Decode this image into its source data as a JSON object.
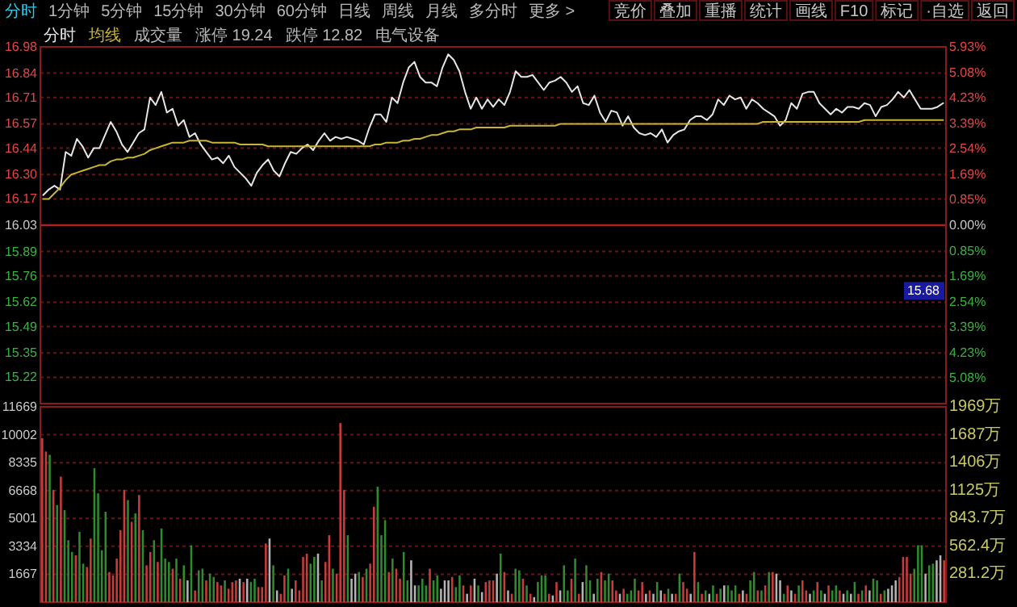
{
  "chart_data": [
    {
      "type": "other",
      "annotations": [
        "分时",
        "1分钟",
        "5分钟",
        "15分钟",
        "30分钟",
        "60分钟",
        "日线",
        "周线",
        "月线",
        "多分时",
        "更多 >"
      ]
    },
    {
      "type": "other",
      "annotations": [
        "竞价",
        "叠加",
        "重播",
        "统计",
        "画线",
        "F10",
        "标记",
        "·自选",
        "返回"
      ]
    },
    {
      "type": "line",
      "grid": "y",
      "categories": [
        null,
        null,
        null,
        null,
        null,
        null,
        null,
        null,
        null,
        null,
        null,
        null,
        null,
        null,
        null,
        null,
        null,
        null,
        null,
        null,
        null,
        null,
        null,
        null,
        null,
        null,
        null,
        null,
        null,
        null,
        null,
        null,
        null,
        null,
        null,
        null,
        null,
        null,
        null,
        null,
        null,
        null,
        null,
        null,
        null,
        null,
        null,
        null,
        null,
        null,
        null,
        null,
        null,
        null,
        null,
        null,
        null,
        null,
        null,
        null,
        null,
        null,
        null,
        null,
        null,
        null,
        null,
        null,
        null,
        null,
        null,
        null,
        null,
        null,
        null,
        null,
        null,
        null,
        null,
        null,
        null,
        null,
        null,
        null,
        null,
        null,
        null,
        null,
        null,
        null,
        null,
        null,
        null,
        null,
        null,
        null,
        null,
        null,
        null,
        null,
        null,
        null,
        null,
        null,
        null,
        null,
        null,
        null,
        null,
        null,
        null,
        null,
        null,
        null,
        null,
        null,
        null,
        null,
        null,
        null,
        null,
        null,
        null,
        null,
        null,
        null,
        null,
        null,
        null,
        null,
        null,
        null,
        null,
        null,
        null,
        null,
        null,
        null,
        null,
        null,
        null,
        null,
        null,
        null,
        null,
        null,
        null,
        null,
        null,
        null,
        null,
        null,
        null,
        null,
        null,
        null,
        null,
        null,
        null,
        null,
        null
      ],
      "ylim": [
        15.08,
        16.98
      ],
      "yticks": [
        16.98,
        16.84,
        16.71,
        16.57,
        16.44,
        {
          "value": 16.3,
          "label": "16.30"
        },
        16.17,
        16.03,
        15.89,
        15.76,
        15.62,
        15.49,
        15.35,
        15.22
      ],
      "y2lim": [
        -5.93,
        5.93
      ],
      "y2ticks": [
        {
          "value": 5.93,
          "label": "5.93%"
        },
        {
          "value": 5.08,
          "label": "5.08%"
        },
        {
          "value": 4.23,
          "label": "4.23%"
        },
        {
          "value": 3.39,
          "label": "3.39%"
        },
        {
          "value": 2.54,
          "label": "2.54%"
        },
        {
          "value": 1.69,
          "label": "1.69%"
        },
        {
          "value": 0.85,
          "label": "0.85%"
        },
        {
          "value": 0,
          "label": "0.00%"
        },
        {
          "value": -0.85,
          "label": "0.85%"
        },
        {
          "value": -1.69,
          "label": "1.69%"
        },
        {
          "value": -2.54,
          "label": "2.54%"
        },
        {
          "value": -3.39,
          "label": "3.39%"
        },
        {
          "value": -4.23,
          "label": "4.23%"
        },
        {
          "value": -5.08,
          "label": "5.08%"
        }
      ],
      "ref_lines": [
        {
          "axis": "y",
          "value": 16.03,
          "color": "#b02020"
        }
      ],
      "annotations": [
        "成交量",
        "涨停 19.24",
        "跌停 12.82",
        "电气设备",
        {
          "text": "15.68",
          "y": 15.68
        }
      ],
      "series": [
        {
          "name": "分时",
          "color": "#e6e6e6",
          "values": [
            16.19,
            16.22,
            16.24,
            16.22,
            16.42,
            16.4,
            16.49,
            16.45,
            16.39,
            16.44,
            16.44,
            16.51,
            16.58,
            16.53,
            16.46,
            16.42,
            16.47,
            16.52,
            16.54,
            16.71,
            16.67,
            16.74,
            16.63,
            16.65,
            16.56,
            16.59,
            16.5,
            16.52,
            16.46,
            16.42,
            16.38,
            16.39,
            16.36,
            16.4,
            16.34,
            16.31,
            16.28,
            16.24,
            16.31,
            16.35,
            16.38,
            16.32,
            16.29,
            16.36,
            16.42,
            16.41,
            16.44,
            16.46,
            16.43,
            16.48,
            16.52,
            16.48,
            16.5,
            16.49,
            16.5,
            16.49,
            16.48,
            16.46,
            16.55,
            16.62,
            16.62,
            16.58,
            16.71,
            16.68,
            16.79,
            16.87,
            16.9,
            16.82,
            16.79,
            16.79,
            16.77,
            16.87,
            16.94,
            16.91,
            16.85,
            16.74,
            16.65,
            16.71,
            16.65,
            16.7,
            16.66,
            16.7,
            16.67,
            16.74,
            16.85,
            16.82,
            16.82,
            16.83,
            16.79,
            16.75,
            16.79,
            16.8,
            16.82,
            16.79,
            16.74,
            16.77,
            16.68,
            16.67,
            16.72,
            16.63,
            16.58,
            16.64,
            16.63,
            16.56,
            16.61,
            16.55,
            16.52,
            16.51,
            16.52,
            16.5,
            16.54,
            16.47,
            16.51,
            16.53,
            16.54,
            16.59,
            16.61,
            16.61,
            16.59,
            16.62,
            16.7,
            16.67,
            16.72,
            16.7,
            16.71,
            16.65,
            16.7,
            16.68,
            16.65,
            16.63,
            16.61,
            16.56,
            16.59,
            16.68,
            16.65,
            16.73,
            16.74,
            16.74,
            16.68,
            16.65,
            16.62,
            16.65,
            16.63,
            16.66,
            16.66,
            16.65,
            16.68,
            16.67,
            16.61,
            16.66,
            16.67,
            16.7,
            16.74,
            16.71,
            16.75,
            16.7,
            16.65,
            16.65,
            16.65,
            16.66,
            16.68
          ]
        },
        {
          "name": "均线",
          "color": "#c8b432",
          "values": [
            16.17,
            16.17,
            16.2,
            16.23,
            16.27,
            16.3,
            16.31,
            16.32,
            16.33,
            16.34,
            16.35,
            16.35,
            16.37,
            16.38,
            16.38,
            16.39,
            16.39,
            16.4,
            16.41,
            16.43,
            16.44,
            16.45,
            16.46,
            16.47,
            16.47,
            16.47,
            16.48,
            16.48,
            16.48,
            16.48,
            16.47,
            16.47,
            16.47,
            16.47,
            16.47,
            16.46,
            16.46,
            16.46,
            16.46,
            16.46,
            16.45,
            16.45,
            16.45,
            16.45,
            16.45,
            16.45,
            16.45,
            16.45,
            16.45,
            16.45,
            16.45,
            16.45,
            16.45,
            16.45,
            16.45,
            16.45,
            16.45,
            16.45,
            16.45,
            16.46,
            16.46,
            16.47,
            16.47,
            16.47,
            16.48,
            16.48,
            16.49,
            16.49,
            16.5,
            16.51,
            16.51,
            16.52,
            16.53,
            16.53,
            16.54,
            16.54,
            16.54,
            16.55,
            16.55,
            16.55,
            16.55,
            16.55,
            16.55,
            16.56,
            16.56,
            16.56,
            16.56,
            16.56,
            16.56,
            16.56,
            16.56,
            16.56,
            16.57,
            16.57,
            16.57,
            16.57,
            16.57,
            16.57,
            16.57,
            16.57,
            16.57,
            16.57,
            16.57,
            16.57,
            16.57,
            16.57,
            16.57,
            16.57,
            16.57,
            16.57,
            16.57,
            16.57,
            16.57,
            16.57,
            16.57,
            16.57,
            16.57,
            16.57,
            16.57,
            16.57,
            16.57,
            16.57,
            16.57,
            16.57,
            16.57,
            16.57,
            16.57,
            16.57,
            16.58,
            16.58,
            16.58,
            16.58,
            16.58,
            16.58,
            16.58,
            16.58,
            16.58,
            16.58,
            16.58,
            16.58,
            16.58,
            16.58,
            16.58,
            16.58,
            16.58,
            16.58,
            16.59,
            16.59,
            16.59,
            16.59,
            16.59,
            16.59,
            16.59,
            16.59,
            16.59,
            16.59,
            16.59,
            16.59,
            16.59,
            16.59,
            16.59
          ]
        }
      ]
    },
    {
      "type": "bar",
      "grid": "y",
      "ylim": [
        0,
        11669
      ],
      "yticks": [
        1667,
        3334,
        5001,
        6668,
        8335,
        10002,
        11669
      ],
      "y2lim": [
        0,
        1969
      ],
      "y2ticks": [
        {
          "value": 281.2,
          "label": "281.2万"
        },
        {
          "value": 562.4,
          "label": "562.4万"
        },
        {
          "value": 843.7,
          "label": "843.7万"
        },
        {
          "value": 1125,
          "label": "1125万"
        },
        {
          "value": 1406,
          "label": "1406万"
        },
        {
          "value": 1687,
          "label": "1687万"
        },
        {
          "value": 1969,
          "label": "1969万"
        }
      ],
      "categories": [
        null,
        null,
        null,
        null,
        null,
        null,
        null,
        null,
        null,
        null,
        null,
        null,
        null,
        null,
        null,
        null,
        null,
        null,
        null,
        null,
        null,
        null,
        null,
        null,
        null,
        null,
        null,
        null,
        null,
        null,
        null,
        null,
        null,
        null,
        null,
        null,
        null,
        null,
        null,
        null,
        null,
        null,
        null,
        null,
        null,
        null,
        null,
        null,
        null,
        null,
        null,
        null,
        null,
        null,
        null,
        null,
        null,
        null,
        null,
        null,
        null,
        null,
        null,
        null,
        null,
        null,
        null,
        null,
        null,
        null,
        null,
        null,
        null,
        null,
        null,
        null,
        null,
        null,
        null,
        null,
        null,
        null,
        null,
        null,
        null,
        null,
        null,
        null,
        null,
        null,
        null,
        null,
        null,
        null,
        null,
        null,
        null,
        null,
        null,
        null,
        null,
        null,
        null,
        null,
        null,
        null,
        null,
        null,
        null,
        null,
        null,
        null,
        null,
        null,
        null,
        null,
        null,
        null,
        null,
        null,
        null,
        null,
        null,
        null,
        null,
        null,
        null,
        null,
        null,
        null,
        null,
        null,
        null,
        null,
        null,
        null,
        null,
        null,
        null,
        null,
        null,
        null,
        null,
        null,
        null,
        null,
        null,
        null,
        null,
        null,
        null,
        null,
        null,
        null,
        null,
        null,
        null,
        null,
        null,
        null,
        null,
        null,
        null,
        null,
        null,
        null,
        null,
        null,
        null,
        null,
        null,
        null,
        null,
        null,
        null,
        null,
        null,
        null,
        null,
        null,
        null,
        null,
        null,
        null,
        null,
        null,
        null,
        null,
        null,
        null,
        null,
        null,
        null,
        null,
        null,
        null,
        null,
        null,
        null,
        null,
        null,
        null,
        null,
        null,
        null,
        null,
        null,
        null,
        null,
        null,
        null,
        null,
        null,
        null,
        null,
        null,
        null,
        null,
        null,
        null,
        null,
        null,
        null,
        null,
        null,
        null,
        null,
        null,
        null,
        null,
        null,
        null,
        null,
        null,
        null,
        null,
        null,
        null,
        null,
        null,
        null,
        null,
        null
      ],
      "values": [
        9800,
        9000,
        8800,
        6700,
        5800,
        7500,
        5500,
        3700,
        3000,
        2800,
        4200,
        2300,
        2100,
        3800,
        8000,
        6500,
        3100,
        5400,
        1800,
        1600,
        2600,
        4300,
        6700,
        6100,
        4800,
        5300,
        6400,
        4300,
        2200,
        3000,
        3700,
        2400,
        4400,
        2600,
        2400,
        2000,
        2600,
        1400,
        2200,
        1300,
        3400,
        700,
        1900,
        2000,
        1300,
        1700,
        1500,
        1200,
        1000,
        1300,
        800,
        1200,
        1300,
        1400,
        1200,
        1400,
        1200,
        1400,
        900,
        900,
        3500,
        3800,
        2200,
        700,
        500,
        1600,
        2000,
        800,
        1300,
        700,
        2700,
        2900,
        2300,
        2700,
        2900,
        1300,
        2400,
        4000,
        2000,
        1700,
        10700,
        6700,
        4000,
        1400,
        1700,
        1800,
        1500,
        2000,
        2300,
        5700,
        6900,
        4000,
        4900,
        1800,
        2600,
        2000,
        1400,
        3000,
        1300,
        2500,
        1000,
        1000,
        1400,
        1000,
        2000,
        1300,
        1600,
        800,
        1300,
        1300,
        1500,
        900,
        1600,
        1000,
        500,
        1000,
        1400,
        1000,
        600,
        1200,
        1300,
        1300,
        1700,
        2900,
        1800,
        700,
        500,
        2000,
        1900,
        1400,
        1000,
        500,
        300,
        1200,
        1600,
        1600,
        500,
        400,
        1200,
        700,
        2200,
        700,
        1400,
        2600,
        500,
        1200,
        2200,
        1300,
        500,
        1400,
        1800,
        1300,
        1700,
        1300,
        700,
        500,
        800,
        500,
        700,
        1400,
        700,
        1200,
        500,
        700,
        500,
        1200,
        700,
        500,
        800,
        500,
        500,
        1700,
        1200,
        800,
        500,
        3000,
        1200,
        500,
        700,
        500,
        1000,
        500,
        800,
        1000,
        1000,
        700,
        1000,
        500,
        700,
        500,
        1300,
        1800,
        700,
        700,
        1000,
        1800,
        1800,
        1700,
        1300,
        500,
        1000,
        700,
        500,
        1000,
        1300,
        700,
        500,
        700,
        1200,
        700,
        500,
        1000,
        700,
        1000,
        700,
        500,
        700,
        500,
        1200,
        500,
        700,
        1000,
        700,
        1400,
        1300,
        500,
        700,
        800,
        1000,
        1300,
        1500,
        2700,
        2700,
        1700,
        2000,
        3400,
        3400,
        1700,
        2200,
        2300,
        2500,
        2800,
        2500
      ],
      "colors": [
        "#c83c3c",
        "#c83c3c",
        "#2e8b2e",
        "#c83c3c",
        "#2e8b2e",
        "#c83c3c",
        "#2e8b2e",
        "#2e8b2e",
        "#2e8b2e",
        "#c83c3c",
        "#2e8b2e",
        "#2e8b2e",
        "#c83c3c",
        "#c83c3c",
        "#2e8b2e",
        "#2e8b2e",
        "#2e8b2e",
        "#2e8b2e",
        "#c83c3c",
        "#c83c3c",
        "#c83c3c",
        "#c83c3c",
        "#c83c3c",
        "#2e8b2e",
        "#c83c3c",
        "#2e8b2e",
        "#c83c3c",
        "#2e8b2e",
        "#c83c3c",
        "#c83c3c",
        "#2e8b2e",
        "#c83c3c",
        "#2e8b2e",
        "#2e8b2e",
        "#2e8b2e",
        "#c83c3c",
        "#2e8b2e",
        "#c83c3c",
        "#2e8b2e",
        "#b4b4b4",
        "#2e8b2e",
        "#c83c3c",
        "#2e8b2e",
        "#2e8b2e",
        "#c83c3c",
        "#2e8b2e",
        "#2e8b2e",
        "#c83c3c",
        "#c83c3c",
        "#2e8b2e",
        "#c83c3c",
        "#c83c3c",
        "#c83c3c",
        "#b4b4b4",
        "#c83c3c",
        "#b4b4b4",
        "#2e8b2e",
        "#2e8b2e",
        "#c83c3c",
        "#c83c3c",
        "#c83c3c",
        "#b4b4b4",
        "#2e8b2e",
        "#b4b4b4",
        "#c83c3c",
        "#c83c3c",
        "#2e8b2e",
        "#b4b4b4",
        "#c83c3c",
        "#c83c3c",
        "#c83c3c",
        "#c83c3c",
        "#2e8b2e",
        "#2e8b2e",
        "#b4b4b4",
        "#2e8b2e",
        "#c83c3c",
        "#c83c3c",
        "#2e8b2e",
        "#c83c3c",
        "#c83c3c",
        "#c83c3c",
        "#2e8b2e",
        "#b4b4b4",
        "#b4b4b4",
        "#2e8b2e",
        "#c83c3c",
        "#2e8b2e",
        "#c83c3c",
        "#c83c3c",
        "#2e8b2e",
        "#2e8b2e",
        "#2e8b2e",
        "#c83c3c",
        "#2e8b2e",
        "#c83c3c",
        "#c83c3c",
        "#2e8b2e",
        "#2e8b2e",
        "#b4b4b4",
        "#b4b4b4",
        "#2e8b2e",
        "#2e8b2e",
        "#2e8b2e",
        "#c83c3c",
        "#2e8b2e",
        "#2e8b2e",
        "#b4b4b4",
        "#b4b4b4",
        "#b4b4b4",
        "#c83c3c",
        "#2e8b2e",
        "#2e8b2e",
        "#c83c3c",
        "#b4b4b4",
        "#c83c3c",
        "#b4b4b4",
        "#2e8b2e",
        "#b4b4b4",
        "#c83c3c",
        "#c83c3c",
        "#c83c3c",
        "#b4b4b4",
        "#2e8b2e",
        "#c83c3c",
        "#b4b4b4",
        "#c83c3c",
        "#2e8b2e",
        "#2e8b2e",
        "#c83c3c",
        "#2e8b2e",
        "#c83c3c",
        "#b4b4b4",
        "#2e8b2e",
        "#2e8b2e",
        "#2e8b2e",
        "#c83c3c",
        "#b4b4b4",
        "#c83c3c",
        "#b4b4b4",
        "#2e8b2e",
        "#2e8b2e",
        "#c83c3c",
        "#2e8b2e",
        "#c83c3c",
        "#b4b4b4",
        "#2e8b2e",
        "#2e8b2e",
        "#b4b4b4",
        "#2e8b2e",
        "#c83c3c",
        "#2e8b2e",
        "#2e8b2e",
        "#c83c3c",
        "#c83c3c",
        "#b4b4b4",
        "#c83c3c",
        "#2e8b2e",
        "#2e8b2e",
        "#2e8b2e",
        "#c83c3c",
        "#c83c3c",
        "#b4b4b4",
        "#c83c3c",
        "#b4b4b4",
        "#2e8b2e",
        "#b4b4b4",
        "#c83c3c",
        "#2e8b2e",
        "#b4b4b4",
        "#c83c3c",
        "#2e8b2e",
        "#c83c3c",
        "#c83c3c",
        "#b4b4b4",
        "#c83c3c",
        "#2e8b2e",
        "#c83c3c",
        "#2e8b2e",
        "#b4b4b4",
        "#2e8b2e",
        "#c83c3c",
        "#2e8b2e",
        "#b4b4b4",
        "#2e8b2e",
        "#2e8b2e",
        "#2e8b2e",
        "#c83c3c",
        "#b4b4b4",
        "#c83c3c",
        "#2e8b2e",
        "#2e8b2e",
        "#c83c3c",
        "#2e8b2e",
        "#c83c3c",
        "#2e8b2e",
        "#c83c3c",
        "#b4b4b4",
        "#b4b4b4",
        "#2e8b2e",
        "#c83c3c",
        "#b4b4b4",
        "#c83c3c",
        "#2e8b2e",
        "#c83c3c",
        "#c83c3c",
        "#b4b4b4",
        "#2e8b2e",
        "#c83c3c",
        "#2e8b2e",
        "#b4b4b4",
        "#c83c3c",
        "#2e8b2e",
        "#2e8b2e",
        "#c83c3c",
        "#b4b4b4",
        "#2e8b2e",
        "#b4b4b4",
        "#2e8b2e",
        "#c83c3c",
        "#2e8b2e",
        "#c83c3c",
        "#b4b4b4",
        "#2e8b2e",
        "#2e8b2e",
        "#c83c3c",
        "#2e8b2e",
        "#b4b4b4",
        "#b4b4b4",
        "#b4b4b4",
        "#c83c3c",
        "#c83c3c",
        "#c83c3c",
        "#c83c3c",
        "#2e8b2e",
        "#2e8b2e",
        "#2e8b2e",
        "#b4b4b4",
        "#2e8b2e",
        "#2e8b2e",
        "#b4b4b4",
        "#b4b4b4",
        "#c83c3c"
      ]
    }
  ]
}
